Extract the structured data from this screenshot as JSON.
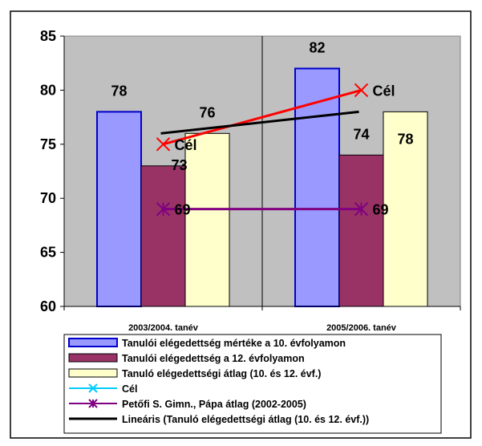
{
  "chart_data": {
    "type": "bar",
    "categories": [
      "2003/2004. tanév",
      "2005/2006. tanév"
    ],
    "ylim": [
      60,
      85
    ],
    "yticks": [
      "60",
      "65",
      "70",
      "75",
      "80",
      "85"
    ],
    "grid": true,
    "legend_position": "bottom",
    "series": [
      {
        "name": "Tanulói elégedettség mértéke a 10. évfolyamon",
        "kind": "bar",
        "values": [
          78,
          82
        ],
        "labels": [
          "78",
          "82"
        ],
        "color": "#9999ff",
        "edge": "#0000cc"
      },
      {
        "name": "Tanulói elégedettség a 12. évfolyamon",
        "kind": "bar",
        "values": [
          73,
          74
        ],
        "labels": [
          "73",
          "74"
        ],
        "color": "#993366",
        "edge": "#000000"
      },
      {
        "name": "Tanuló elégedettségi átlag (10. és 12. évf.)",
        "kind": "bar",
        "values": [
          76,
          78
        ],
        "labels": [
          "76",
          "78"
        ],
        "color": "#ffffcc",
        "edge": "#000000"
      },
      {
        "name": "Cél",
        "kind": "line",
        "values": [
          75,
          80
        ],
        "labels": [
          "Cél",
          "Cél"
        ],
        "color": "#ff0000",
        "legend_color": "#00ccff"
      },
      {
        "name": "Petőfi S. Gimn., Pápa átlag (2002-2005)",
        "kind": "line",
        "values": [
          69,
          69
        ],
        "labels": [
          "69",
          "69"
        ],
        "color": "#800080"
      },
      {
        "name": "Lineáris (Tanuló elégedettségi átlag (10. és 12. évf.))",
        "kind": "trend",
        "values": [
          76,
          78
        ],
        "color": "#000000"
      }
    ]
  }
}
